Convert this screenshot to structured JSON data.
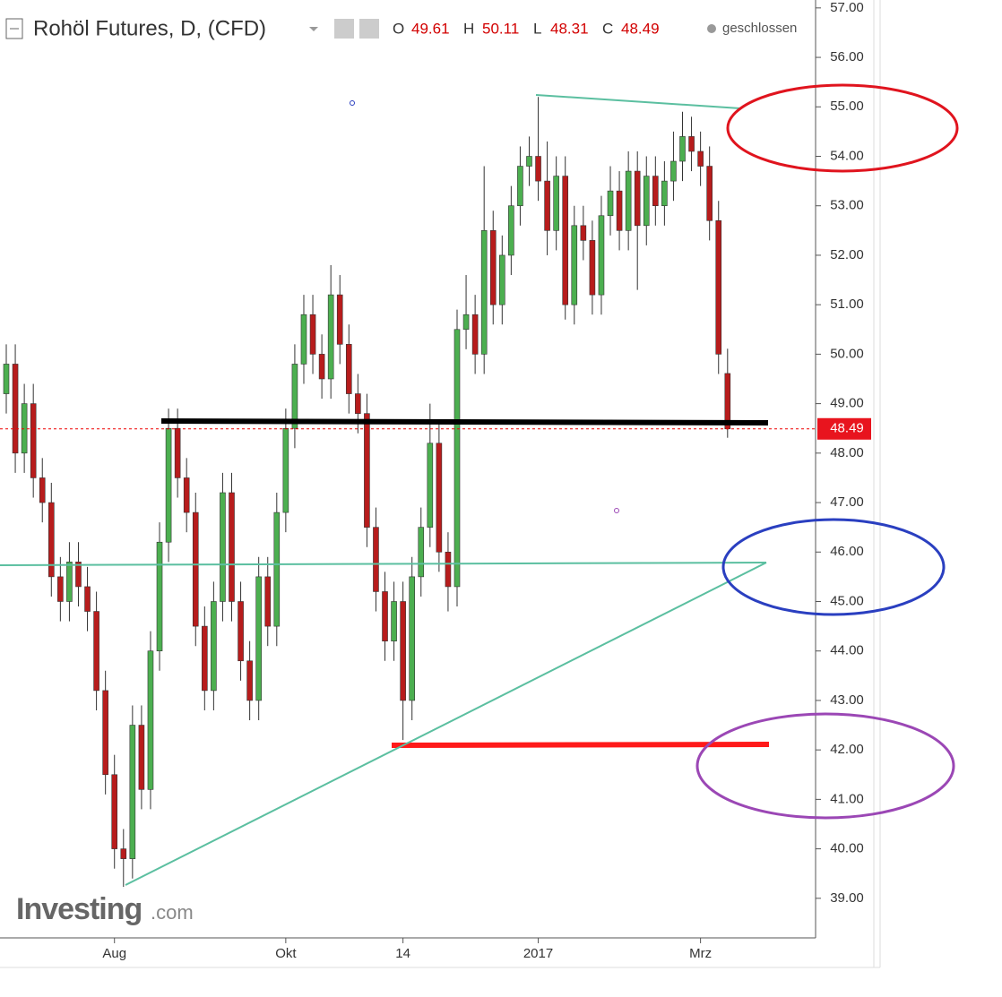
{
  "chart_data": {
    "type": "candlestick",
    "title": "Rohöl Futures, D, (CFD)",
    "ohlc_labels": [
      "O",
      "H",
      "L",
      "C"
    ],
    "status": "geschlossen",
    "watermark": [
      "Investing",
      ".com"
    ],
    "up_color": "#4caf50",
    "down_color": "#b71c1c",
    "grid": false,
    "ylim": [
      38.2,
      57.16
    ],
    "yticks": [
      {
        "value": 39,
        "label": "39.00"
      },
      {
        "value": 40,
        "label": "40.00"
      },
      {
        "value": 41,
        "label": "41.00"
      },
      {
        "value": 42,
        "label": "42.00"
      },
      {
        "value": 43,
        "label": "43.00"
      },
      {
        "value": 44,
        "label": "44.00"
      },
      {
        "value": 45,
        "label": "45.00"
      },
      {
        "value": 46,
        "label": "46.00"
      },
      {
        "value": 47,
        "label": "47.00"
      },
      {
        "value": 48,
        "label": "48.00"
      },
      {
        "value": 49,
        "label": "49.00"
      },
      {
        "value": 50,
        "label": "50.00"
      },
      {
        "value": 51,
        "label": "51.00"
      },
      {
        "value": 52,
        "label": "52.00"
      },
      {
        "value": 53,
        "label": "53.00"
      },
      {
        "value": 54,
        "label": "54.00"
      },
      {
        "value": 55,
        "label": "55.00"
      },
      {
        "value": 56,
        "label": "56.00"
      },
      {
        "value": 57,
        "label": "57.00"
      }
    ],
    "categories": [
      null,
      null,
      null,
      null,
      null,
      null,
      null,
      null,
      null,
      null,
      null,
      null,
      "Aug",
      null,
      null,
      null,
      null,
      null,
      null,
      null,
      null,
      null,
      null,
      null,
      null,
      null,
      null,
      null,
      null,
      null,
      null,
      "Okt",
      null,
      null,
      null,
      null,
      null,
      null,
      null,
      null,
      null,
      null,
      null,
      null,
      "14",
      null,
      null,
      null,
      null,
      null,
      null,
      null,
      null,
      null,
      null,
      null,
      null,
      null,
      null,
      "2017",
      null,
      null,
      null,
      null,
      null,
      null,
      null,
      null,
      null,
      null,
      null,
      null,
      null,
      null,
      null,
      null,
      null,
      "Mrz",
      null,
      null,
      null
    ],
    "open": [
      49.2,
      49.8,
      48.0,
      49.0,
      47.5,
      47.0,
      45.5,
      45.0,
      45.8,
      45.3,
      44.8,
      43.2,
      41.5,
      40.0,
      39.8,
      42.5,
      41.2,
      44.0,
      46.2,
      48.5,
      47.5,
      46.8,
      44.5,
      43.2,
      45.0,
      47.2,
      45.0,
      43.8,
      43.0,
      45.5,
      44.5,
      46.8,
      48.5,
      49.8,
      50.8,
      50.0,
      49.5,
      51.2,
      50.2,
      49.2,
      48.8,
      46.5,
      45.2,
      44.2,
      45.0,
      43.0,
      45.5,
      46.5,
      48.2,
      46.0,
      45.3,
      50.5,
      50.8,
      50.0,
      52.5,
      51.0,
      52.0,
      53.0,
      53.8,
      54.0,
      53.5,
      52.5,
      53.6,
      51.0,
      52.6,
      52.3,
      51.2,
      52.8,
      53.3,
      52.5,
      53.7,
      52.6,
      53.6,
      53.0,
      53.5,
      53.9,
      54.4,
      54.1,
      53.8,
      52.7,
      49.61
    ],
    "high": [
      50.2,
      50.2,
      49.4,
      49.4,
      47.9,
      47.4,
      45.9,
      46.2,
      46.2,
      45.7,
      45.2,
      43.6,
      41.9,
      40.4,
      42.9,
      42.9,
      44.4,
      46.6,
      48.9,
      48.9,
      47.9,
      47.2,
      44.9,
      45.4,
      47.6,
      47.6,
      45.4,
      44.2,
      45.9,
      45.9,
      47.2,
      48.9,
      50.2,
      51.2,
      51.2,
      50.4,
      51.8,
      51.6,
      50.6,
      49.6,
      49.2,
      46.9,
      45.6,
      45.4,
      45.4,
      45.9,
      46.9,
      49.0,
      48.6,
      46.4,
      50.9,
      51.6,
      51.2,
      53.8,
      52.9,
      52.4,
      53.4,
      54.2,
      54.4,
      55.2,
      54.3,
      54.0,
      54.0,
      53.0,
      53.0,
      52.7,
      53.2,
      53.8,
      53.7,
      54.1,
      54.1,
      54.0,
      54.0,
      53.9,
      54.5,
      54.9,
      54.8,
      54.5,
      54.2,
      53.1,
      50.11
    ],
    "low": [
      48.8,
      47.6,
      47.6,
      47.1,
      46.6,
      45.1,
      44.6,
      44.6,
      44.9,
      44.4,
      42.8,
      41.1,
      39.6,
      39.2,
      39.4,
      40.8,
      40.8,
      43.6,
      45.8,
      47.1,
      46.4,
      44.1,
      42.8,
      42.8,
      44.6,
      44.6,
      43.4,
      42.6,
      42.6,
      44.1,
      44.1,
      46.4,
      48.1,
      49.4,
      49.6,
      49.1,
      49.1,
      49.8,
      48.8,
      48.4,
      46.1,
      44.8,
      43.8,
      43.8,
      42.2,
      42.6,
      45.1,
      46.1,
      45.6,
      44.8,
      44.9,
      50.1,
      49.6,
      49.6,
      50.6,
      50.6,
      51.6,
      52.6,
      53.4,
      53.1,
      52.0,
      52.1,
      50.7,
      50.6,
      51.9,
      50.8,
      50.8,
      52.4,
      52.1,
      52.1,
      51.3,
      52.2,
      52.6,
      52.6,
      53.1,
      53.5,
      53.7,
      53.4,
      52.3,
      49.6,
      48.31
    ],
    "close": [
      49.8,
      48.0,
      49.0,
      47.5,
      47.0,
      45.5,
      45.0,
      45.8,
      45.3,
      44.8,
      43.2,
      41.5,
      40.0,
      39.8,
      42.5,
      41.2,
      44.0,
      46.2,
      48.5,
      47.5,
      46.8,
      44.5,
      43.2,
      45.0,
      47.2,
      45.0,
      43.8,
      43.0,
      45.5,
      44.5,
      46.8,
      48.5,
      49.8,
      50.8,
      50.0,
      49.5,
      51.2,
      50.2,
      49.2,
      48.8,
      46.5,
      45.2,
      44.2,
      45.0,
      43.0,
      45.5,
      46.5,
      48.2,
      46.0,
      45.3,
      50.5,
      50.8,
      50.0,
      52.5,
      51.0,
      52.0,
      53.0,
      53.8,
      54.0,
      53.5,
      52.5,
      53.6,
      51.0,
      52.6,
      52.3,
      51.2,
      52.8,
      53.3,
      52.5,
      53.7,
      52.6,
      53.6,
      53.0,
      53.5,
      53.9,
      54.4,
      54.1,
      53.8,
      52.7,
      50.0,
      48.49
    ]
  }
}
